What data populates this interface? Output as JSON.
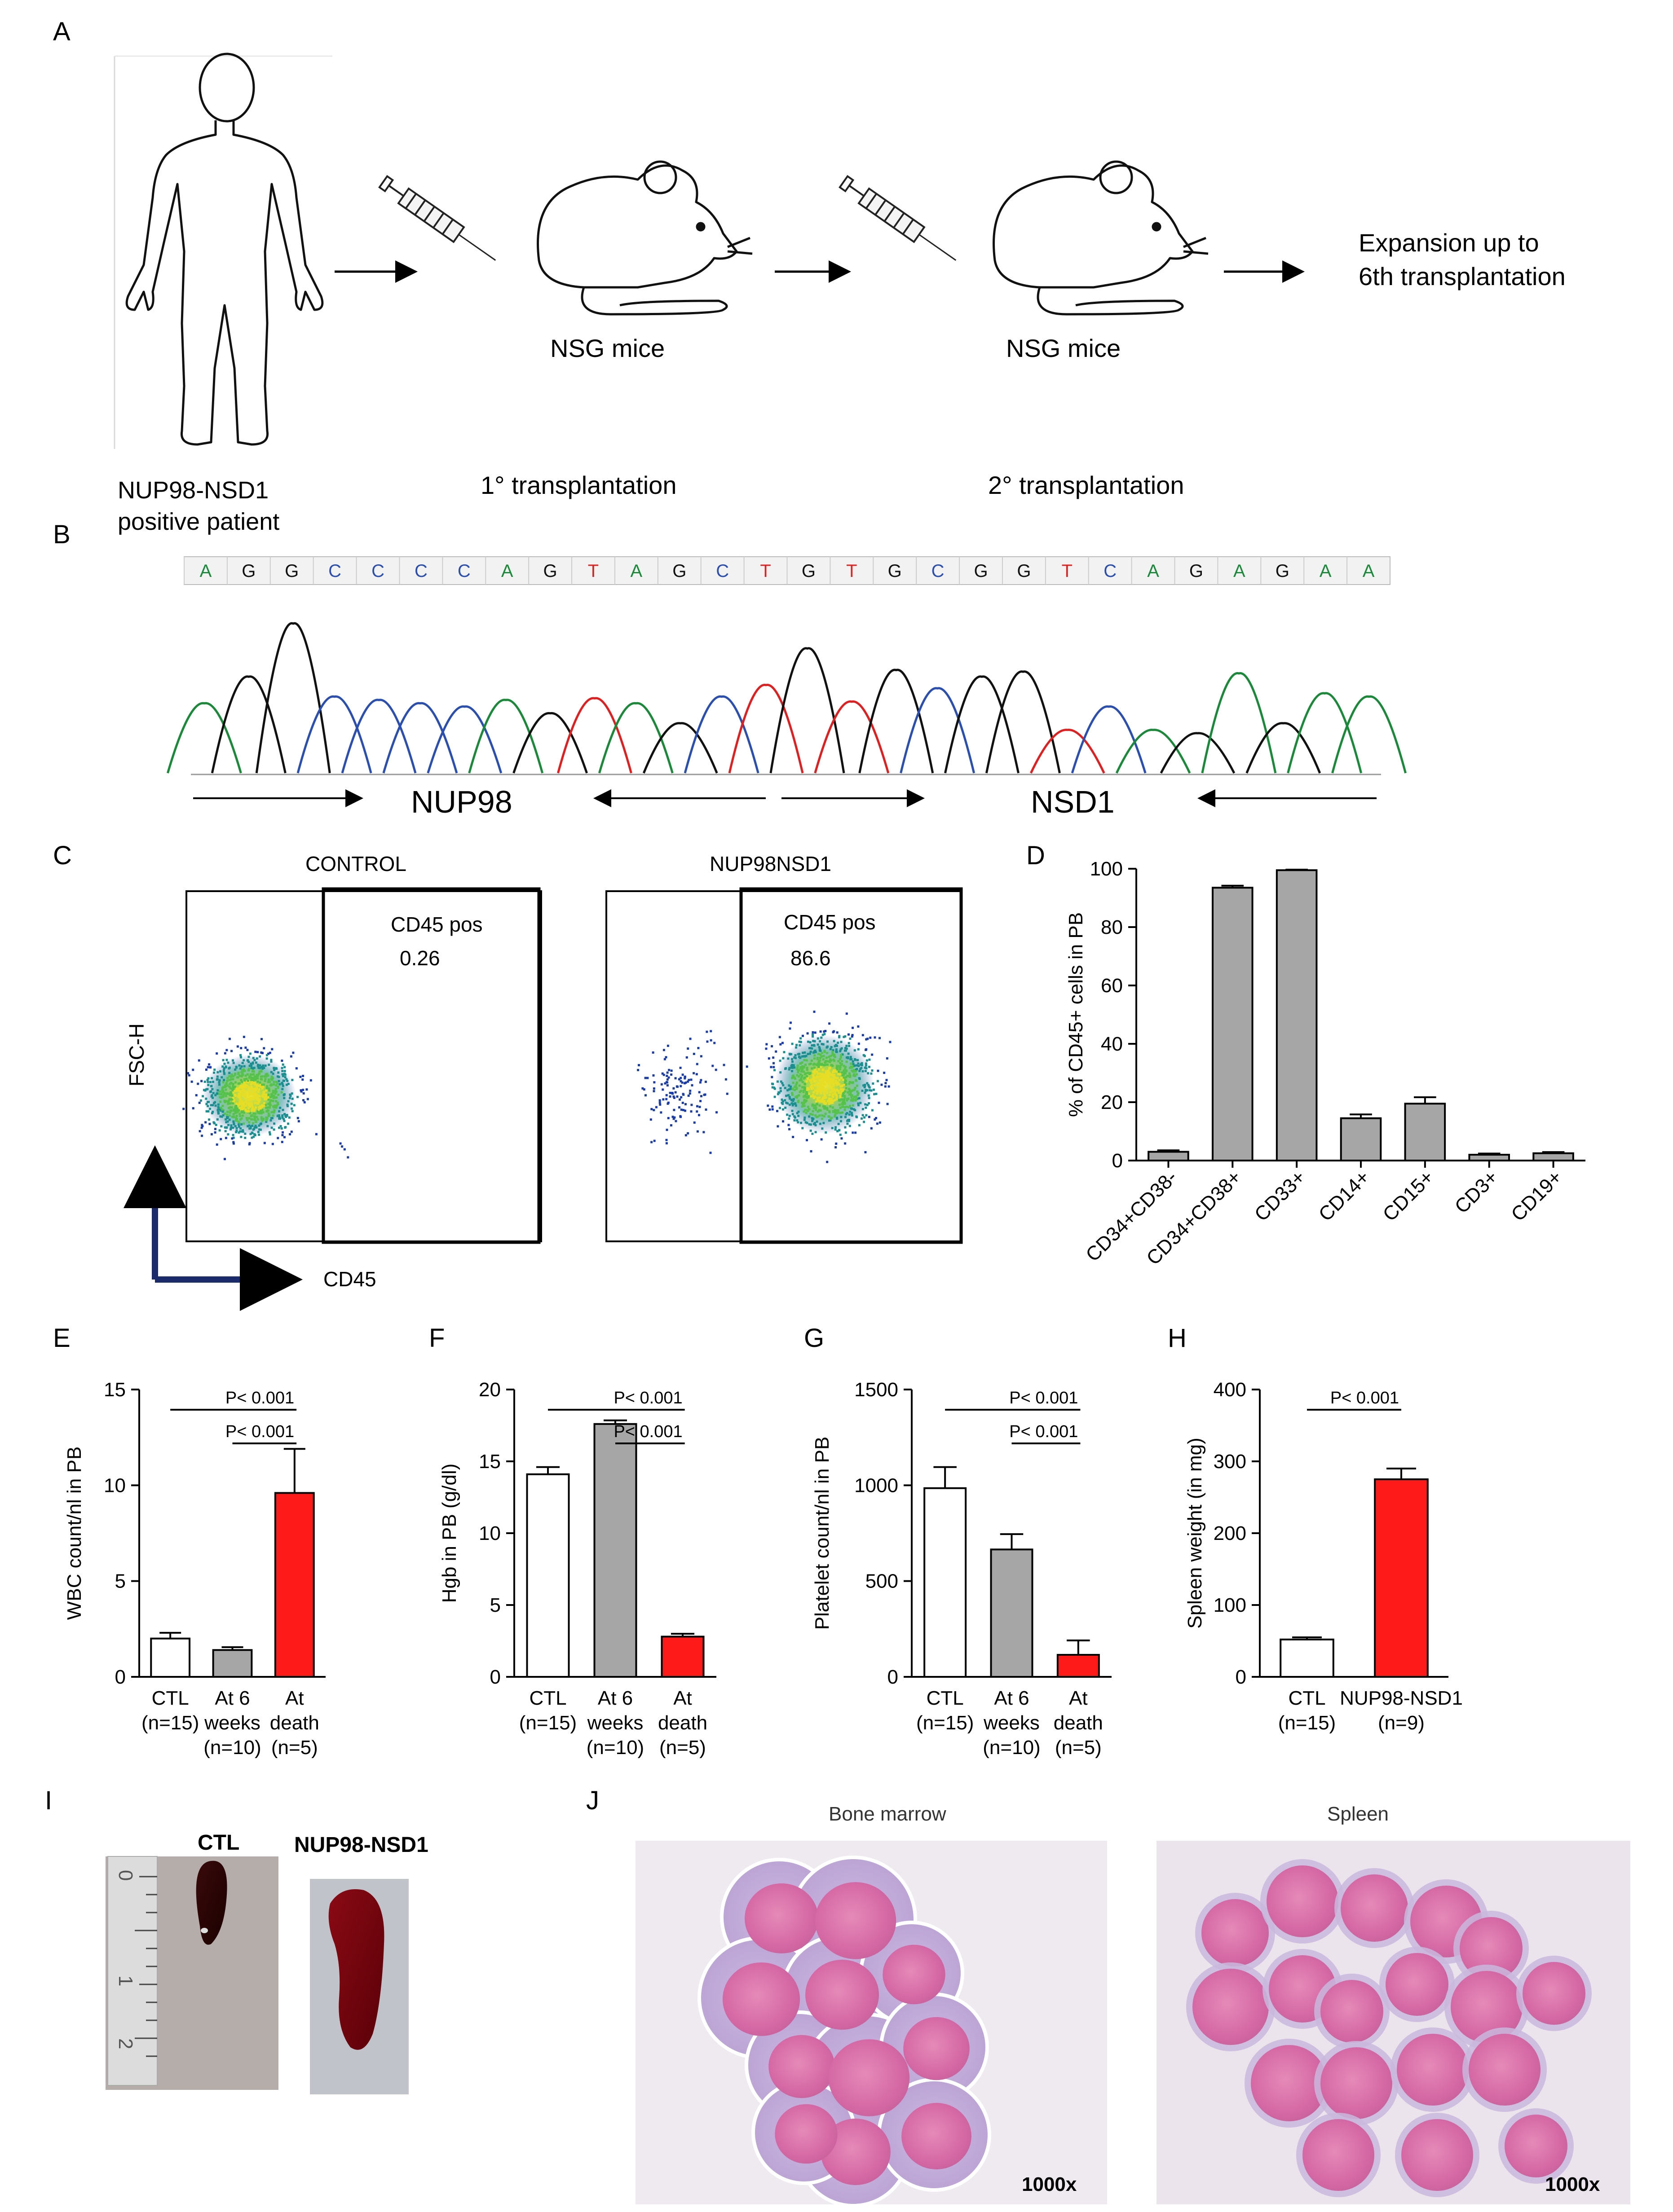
{
  "panel_letters": [
    "A",
    "B",
    "C",
    "D",
    "E",
    "F",
    "G",
    "H",
    "I",
    "J"
  ],
  "panel_a": {
    "patient_label": [
      "NUP98-NSD1",
      "positive patient"
    ],
    "mice_label_1": "NSG mice",
    "mice_label_2": "NSG mice",
    "step_1": "1° transplantation",
    "step_2": "2° transplantation",
    "expansion": [
      "Expansion up to",
      "6th transplantation"
    ]
  },
  "panel_b": {
    "sequence": [
      "A",
      "G",
      "G",
      "C",
      "C",
      "C",
      "C",
      "A",
      "G",
      "T",
      "A",
      "G",
      "C",
      "T",
      "G",
      "T",
      "G",
      "C",
      "G",
      "G",
      "T",
      "C",
      "A",
      "G",
      "A",
      "G",
      "A",
      "A"
    ],
    "base_colors": {
      "A": "#1a8a3a",
      "G": "#111111",
      "C": "#2b4fb0",
      "T": "#e02020"
    },
    "left_gene": "NUP98",
    "right_gene": "NSD1"
  },
  "panel_c": {
    "left_title": "CONTROL",
    "right_title": "NUP98NSD1",
    "gate_label": "CD45 pos",
    "left_value": "0.26",
    "right_value": "86.6",
    "y_axis": "FSC-H",
    "x_axis": "CD45"
  },
  "chart_data": [
    {
      "id": "D",
      "type": "bar",
      "ylabel": "% of CD45+ cells in PB",
      "ylim": [
        0,
        100
      ],
      "yticks": [
        0,
        20,
        40,
        60,
        80,
        100
      ],
      "categories": [
        "CD34+CD38-",
        "CD34+CD38+",
        "CD33+",
        "CD14+",
        "CD15+",
        "CD3+",
        "CD19+"
      ],
      "values": [
        3,
        93.5,
        99.5,
        14.5,
        19.5,
        2,
        2.5
      ],
      "errors": [
        0.5,
        0.7,
        0.2,
        1.3,
        2.2,
        0.4,
        0.4
      ],
      "colors": [
        "#a6a6a6",
        "#a6a6a6",
        "#a6a6a6",
        "#a6a6a6",
        "#a6a6a6",
        "#a6a6a6",
        "#a6a6a6"
      ],
      "rotated_labels": true
    },
    {
      "id": "E",
      "type": "bar",
      "ylabel": "WBC count/nl  in PB",
      "ylim": [
        0,
        15
      ],
      "yticks": [
        0,
        5,
        10,
        15
      ],
      "categories": [
        [
          "CTL",
          "(n=15)"
        ],
        [
          "At 6",
          "weeks",
          "(n=10)"
        ],
        [
          "At",
          "death",
          "(n=5)"
        ]
      ],
      "values": [
        2,
        1.4,
        9.6
      ],
      "errors": [
        0.3,
        0.15,
        2.3
      ],
      "colors": [
        "#ffffff",
        "#a6a6a6",
        "#ff1a1a"
      ],
      "sig": [
        {
          "from": 0,
          "to": 2,
          "label": "P< 0.001"
        },
        {
          "from": 1,
          "to": 2,
          "label": "P< 0.001"
        }
      ]
    },
    {
      "id": "F",
      "type": "bar",
      "ylabel": "Hgb in PB (g/dl)",
      "ylim": [
        0,
        20
      ],
      "yticks": [
        0,
        5,
        10,
        15,
        20
      ],
      "categories": [
        [
          "CTL",
          "(n=15)"
        ],
        [
          "At 6",
          "weeks",
          "(n=10)"
        ],
        [
          "At",
          "death",
          "(n=5)"
        ]
      ],
      "values": [
        14.1,
        17.6,
        2.8
      ],
      "errors": [
        0.5,
        0.25,
        0.2
      ],
      "colors": [
        "#ffffff",
        "#a6a6a6",
        "#ff1a1a"
      ],
      "sig": [
        {
          "from": 0,
          "to": 2,
          "label": "P< 0.001"
        },
        {
          "from": 1,
          "to": 2,
          "label": "P< 0.001"
        }
      ]
    },
    {
      "id": "G",
      "type": "bar",
      "ylabel": "Platelet count/nl  in PB",
      "ylim": [
        0,
        1500
      ],
      "yticks": [
        0,
        500,
        1000,
        1500
      ],
      "categories": [
        [
          "CTL",
          "(n=15)"
        ],
        [
          "At 6",
          "weeks",
          "(n=10)"
        ],
        [
          "At",
          "death",
          "(n=5)"
        ]
      ],
      "values": [
        985,
        665,
        115
      ],
      "errors": [
        110,
        80,
        75
      ],
      "colors": [
        "#ffffff",
        "#a6a6a6",
        "#ff1a1a"
      ],
      "sig": [
        {
          "from": 0,
          "to": 2,
          "label": "P< 0.001"
        },
        {
          "from": 1,
          "to": 2,
          "label": "P< 0.001"
        }
      ]
    },
    {
      "id": "H",
      "type": "bar",
      "ylabel": "Spleen weight (in mg)",
      "ylim": [
        0,
        400
      ],
      "yticks": [
        0,
        100,
        200,
        300,
        400
      ],
      "categories": [
        [
          "CTL",
          "(n=15)"
        ],
        [
          "NUP98-NSD1",
          "(n=9)"
        ]
      ],
      "values": [
        52,
        275
      ],
      "errors": [
        3,
        15
      ],
      "colors": [
        "#ffffff",
        "#ff1a1a"
      ],
      "sig": [
        {
          "from": 0,
          "to": 1,
          "label": "P< 0.001"
        }
      ]
    }
  ],
  "panel_i": {
    "ctl_label": "CTL",
    "nup_label": "NUP98-NSD1",
    "ruler_numbers": [
      "0",
      "1",
      "2"
    ]
  },
  "panel_j": {
    "left_title": "Bone marrow",
    "right_title": "Spleen",
    "magnification": "1000x"
  }
}
